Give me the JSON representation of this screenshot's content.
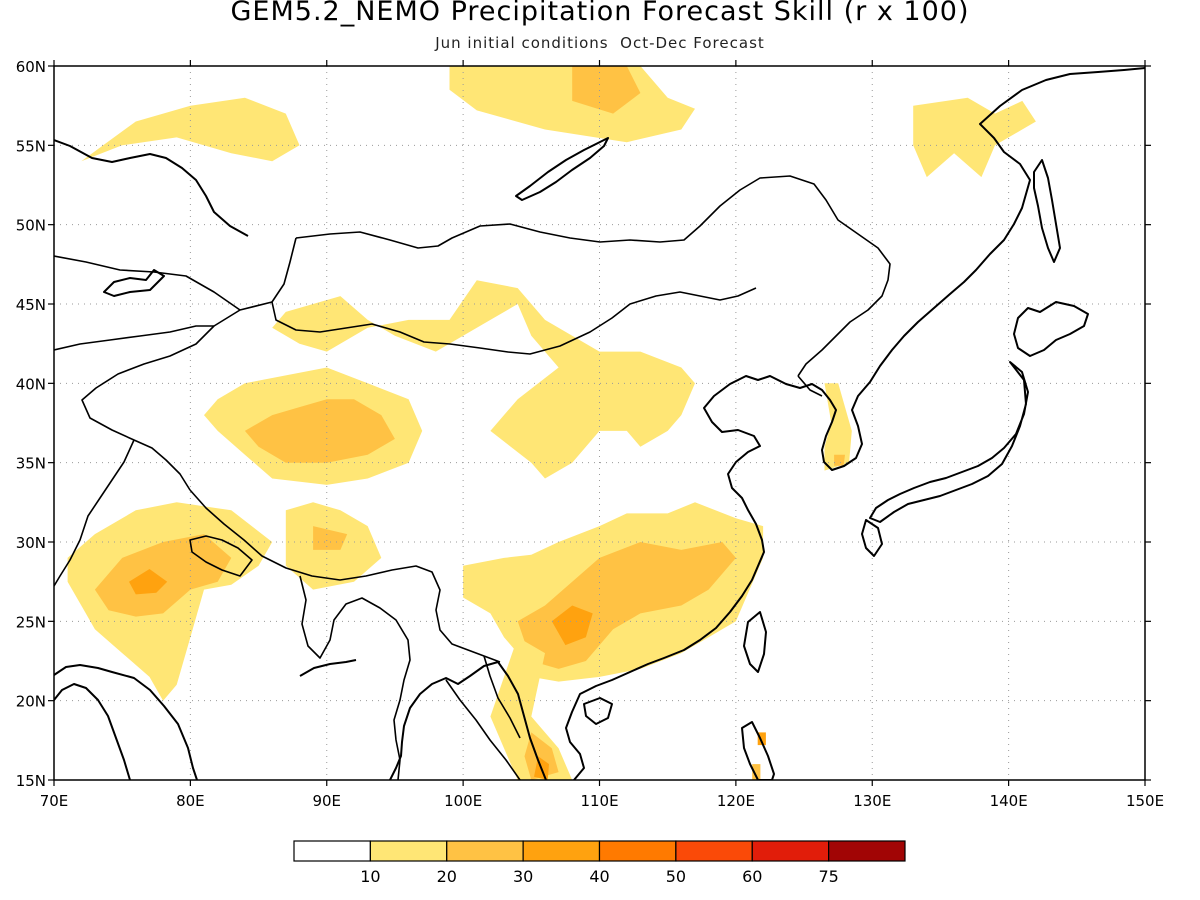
{
  "title": "GEM5.2_NEMO Precipitation Forecast Skill (r x 100)",
  "subtitle": "Jun initial conditions  Oct-Dec Forecast",
  "chart_data": {
    "type": "heatmap",
    "lon_range": [
      70,
      150
    ],
    "lat_range": [
      15,
      60
    ],
    "lat_ticks": [
      {
        "v": 15,
        "label": "15N"
      },
      {
        "v": 20,
        "label": "20N"
      },
      {
        "v": 25,
        "label": "25N"
      },
      {
        "v": 30,
        "label": "30N"
      },
      {
        "v": 35,
        "label": "35N"
      },
      {
        "v": 40,
        "label": "40N"
      },
      {
        "v": 45,
        "label": "45N"
      },
      {
        "v": 50,
        "label": "50N"
      },
      {
        "v": 55,
        "label": "55N"
      },
      {
        "v": 60,
        "label": "60N"
      }
    ],
    "lon_ticks": [
      {
        "v": 70,
        "label": "70E"
      },
      {
        "v": 80,
        "label": "80E"
      },
      {
        "v": 90,
        "label": "90E"
      },
      {
        "v": 100,
        "label": "100E"
      },
      {
        "v": 110,
        "label": "110E"
      },
      {
        "v": 120,
        "label": "120E"
      },
      {
        "v": 130,
        "label": "130E"
      },
      {
        "v": 140,
        "label": "140E"
      },
      {
        "v": 150,
        "label": "150E"
      }
    ],
    "grid": true,
    "colorbar": {
      "colors": [
        "#ffffff",
        "#ffe675",
        "#ffc244",
        "#ffa20f",
        "#ff7a00",
        "#fa4a08",
        "#e11d0a",
        "#a10505"
      ],
      "labels": [
        "10",
        "20",
        "30",
        "40",
        "50",
        "60",
        "75"
      ]
    },
    "regions": [
      {
        "level": 1,
        "pts": [
          [
            72,
            54
          ],
          [
            76,
            56.5
          ],
          [
            80,
            57.5
          ],
          [
            84,
            58
          ],
          [
            87,
            57
          ],
          [
            88,
            55
          ],
          [
            86,
            54
          ],
          [
            83,
            54.5
          ],
          [
            79,
            55.5
          ],
          [
            75,
            55
          ],
          [
            72,
            54
          ]
        ]
      },
      {
        "level": 1,
        "pts": [
          [
            99,
            60
          ],
          [
            113,
            60
          ],
          [
            115,
            58
          ],
          [
            117,
            57.3
          ],
          [
            116,
            56
          ],
          [
            112,
            55.2
          ],
          [
            106,
            56
          ],
          [
            101,
            57.2
          ],
          [
            99,
            58.5
          ],
          [
            99,
            60
          ]
        ]
      },
      {
        "level": 2,
        "pts": [
          [
            108,
            60
          ],
          [
            112,
            60
          ],
          [
            113,
            58.3
          ],
          [
            111,
            57
          ],
          [
            108,
            57.8
          ],
          [
            108,
            60
          ]
        ]
      },
      {
        "level": 1,
        "pts": [
          [
            133,
            57.5
          ],
          [
            137,
            58
          ],
          [
            139,
            57
          ],
          [
            141,
            57.8
          ],
          [
            142,
            56.5
          ],
          [
            139,
            55
          ],
          [
            138,
            53
          ],
          [
            136,
            54.5
          ],
          [
            134,
            53
          ],
          [
            133,
            55
          ],
          [
            133,
            57.5
          ]
        ]
      },
      {
        "level": 1,
        "pts": [
          [
            87,
            44.5
          ],
          [
            91,
            45.5
          ],
          [
            93,
            44
          ],
          [
            95,
            43
          ],
          [
            98,
            42
          ],
          [
            100,
            43
          ],
          [
            102,
            44
          ],
          [
            104,
            45
          ],
          [
            105,
            43
          ],
          [
            107,
            41
          ],
          [
            104,
            39
          ],
          [
            102,
            37
          ],
          [
            105,
            35
          ],
          [
            106,
            34
          ],
          [
            108,
            35
          ],
          [
            110,
            37
          ],
          [
            112,
            37
          ],
          [
            113,
            36
          ],
          [
            115,
            37
          ],
          [
            116,
            38
          ],
          [
            117,
            40
          ],
          [
            116,
            41
          ],
          [
            113,
            42
          ],
          [
            110,
            42
          ],
          [
            108,
            43
          ],
          [
            106,
            44
          ],
          [
            104,
            46
          ],
          [
            101,
            46.5
          ],
          [
            99,
            44
          ],
          [
            96,
            44
          ],
          [
            93,
            43.5
          ],
          [
            90,
            42
          ],
          [
            88,
            42.5
          ],
          [
            86,
            43.5
          ],
          [
            87,
            44.5
          ]
        ]
      },
      {
        "level": 1,
        "pts": [
          [
            84,
            40
          ],
          [
            87,
            40.5
          ],
          [
            90,
            41
          ],
          [
            93,
            40
          ],
          [
            96,
            39
          ],
          [
            97,
            37
          ],
          [
            96,
            35
          ],
          [
            93,
            34
          ],
          [
            90,
            33.6
          ],
          [
            86,
            34
          ],
          [
            84,
            35.5
          ],
          [
            82,
            37
          ],
          [
            81,
            38
          ],
          [
            82,
            39
          ],
          [
            84,
            40
          ]
        ]
      },
      {
        "level": 2,
        "pts": [
          [
            84,
            37
          ],
          [
            86,
            38
          ],
          [
            88,
            38.5
          ],
          [
            90,
            39
          ],
          [
            92,
            39
          ],
          [
            94,
            38
          ],
          [
            95,
            36.5
          ],
          [
            93,
            35.5
          ],
          [
            90,
            35
          ],
          [
            87,
            35
          ],
          [
            85,
            36
          ],
          [
            84,
            37
          ]
        ]
      },
      {
        "level": 2,
        "pts": [
          [
            92,
            38
          ],
          [
            93,
            37
          ],
          [
            92.5,
            36.2
          ],
          [
            91.5,
            37
          ],
          [
            92,
            38
          ]
        ]
      },
      {
        "level": 1,
        "pts": [
          [
            87,
            32
          ],
          [
            89,
            32.5
          ],
          [
            91,
            32
          ],
          [
            93,
            31
          ],
          [
            94,
            29
          ],
          [
            92,
            27.5
          ],
          [
            89,
            27
          ],
          [
            87,
            28.5
          ],
          [
            87,
            30.5
          ],
          [
            87,
            32
          ]
        ]
      },
      {
        "level": 2,
        "pts": [
          [
            89,
            31
          ],
          [
            91.5,
            30.5
          ],
          [
            91,
            29.5
          ],
          [
            89,
            29.5
          ],
          [
            89,
            31
          ]
        ]
      },
      {
        "level": 1,
        "pts": [
          [
            71,
            29
          ],
          [
            73,
            30.5
          ],
          [
            76,
            32
          ],
          [
            79,
            32.5
          ],
          [
            83,
            32
          ],
          [
            86,
            30
          ],
          [
            85,
            28.5
          ],
          [
            83,
            27.3
          ],
          [
            81,
            27
          ],
          [
            80,
            24
          ],
          [
            79,
            21
          ],
          [
            78,
            20
          ],
          [
            77,
            21.5
          ],
          [
            75,
            23
          ],
          [
            73,
            24.5
          ],
          [
            72,
            26
          ],
          [
            71,
            27.5
          ],
          [
            71,
            29
          ]
        ]
      },
      {
        "level": 2,
        "pts": [
          [
            73,
            27
          ],
          [
            75,
            29
          ],
          [
            78,
            30
          ],
          [
            81,
            30.5
          ],
          [
            83,
            29
          ],
          [
            82,
            27.5
          ],
          [
            80,
            27
          ],
          [
            78,
            25.5
          ],
          [
            76,
            25.3
          ],
          [
            74,
            25.7
          ],
          [
            73,
            27
          ]
        ]
      },
      {
        "level": 3,
        "pts": [
          [
            75.5,
            27.5
          ],
          [
            77,
            28.3
          ],
          [
            78.3,
            27.5
          ],
          [
            77.5,
            26.8
          ],
          [
            76,
            26.7
          ],
          [
            75.5,
            27.5
          ]
        ]
      },
      {
        "level": 1,
        "pts": [
          [
            100,
            28.5
          ],
          [
            103,
            29
          ],
          [
            105,
            29.2
          ],
          [
            107,
            30
          ],
          [
            110,
            31
          ],
          [
            112,
            31.8
          ],
          [
            115,
            31.8
          ],
          [
            117,
            32.5
          ],
          [
            120,
            31.5
          ],
          [
            122,
            31
          ],
          [
            122,
            29
          ],
          [
            121,
            27
          ],
          [
            120,
            25
          ],
          [
            118,
            24
          ],
          [
            116,
            23
          ],
          [
            113,
            22
          ],
          [
            110,
            21.5
          ],
          [
            107,
            21.2
          ],
          [
            105,
            21.5
          ],
          [
            104,
            23
          ],
          [
            103,
            24
          ],
          [
            102,
            25.5
          ],
          [
            100,
            26.5
          ],
          [
            100,
            28.5
          ]
        ]
      },
      {
        "level": 2,
        "pts": [
          [
            104,
            25
          ],
          [
            106,
            26
          ],
          [
            108,
            27.5
          ],
          [
            110,
            29
          ],
          [
            113,
            30
          ],
          [
            116,
            29.5
          ],
          [
            119,
            30
          ],
          [
            120,
            29
          ],
          [
            118,
            27
          ],
          [
            116,
            26
          ],
          [
            113,
            25.5
          ],
          [
            111,
            24.5
          ],
          [
            109,
            22.5
          ],
          [
            107,
            22
          ],
          [
            105,
            22.5
          ],
          [
            104,
            25
          ]
        ]
      },
      {
        "level": 3,
        "pts": [
          [
            106.5,
            25
          ],
          [
            108,
            26
          ],
          [
            109.5,
            25.5
          ],
          [
            109,
            24
          ],
          [
            107.5,
            23.5
          ],
          [
            106.5,
            25
          ]
        ]
      },
      {
        "level": 2,
        "pts": [
          [
            117,
            28.5
          ],
          [
            119,
            29.2
          ],
          [
            119.5,
            28.5
          ],
          [
            118.3,
            28
          ],
          [
            117,
            28.5
          ]
        ]
      },
      {
        "level": 1,
        "pts": [
          [
            104,
            24
          ],
          [
            106,
            23
          ],
          [
            105,
            19
          ],
          [
            107,
            17
          ],
          [
            108,
            15
          ],
          [
            104,
            15
          ],
          [
            103,
            17
          ],
          [
            102,
            19
          ],
          [
            104,
            24
          ]
        ]
      },
      {
        "level": 2,
        "pts": [
          [
            105,
            18
          ],
          [
            106.5,
            17
          ],
          [
            107,
            15.5
          ],
          [
            105,
            15
          ],
          [
            104.5,
            16.5
          ],
          [
            105,
            18
          ]
        ]
      },
      {
        "level": 3,
        "pts": [
          [
            105.5,
            16.5
          ],
          [
            106.3,
            16
          ],
          [
            106.2,
            15
          ],
          [
            105.2,
            15.2
          ],
          [
            105.5,
            16.5
          ]
        ]
      },
      {
        "level": 1,
        "pts": [
          [
            126.5,
            40
          ],
          [
            127.5,
            40
          ],
          [
            128.5,
            37
          ],
          [
            128.3,
            35
          ],
          [
            126.5,
            34.5
          ],
          [
            126.5,
            36
          ],
          [
            127,
            37.5
          ],
          [
            126.5,
            40
          ]
        ]
      },
      {
        "level": 2,
        "pts": [
          [
            127.2,
            35.5
          ],
          [
            128,
            35.5
          ],
          [
            127.9,
            34.8
          ],
          [
            127.2,
            34.8
          ],
          [
            127.2,
            35.5
          ]
        ]
      },
      {
        "level": 3,
        "pts": [
          [
            121.6,
            18
          ],
          [
            122.2,
            18
          ],
          [
            122.2,
            17.2
          ],
          [
            121.6,
            17.2
          ],
          [
            121.6,
            18
          ]
        ]
      },
      {
        "level": 2,
        "pts": [
          [
            121.2,
            16
          ],
          [
            121.8,
            16
          ],
          [
            121.8,
            15
          ],
          [
            121.2,
            15
          ],
          [
            121.2,
            16
          ]
        ]
      }
    ]
  }
}
